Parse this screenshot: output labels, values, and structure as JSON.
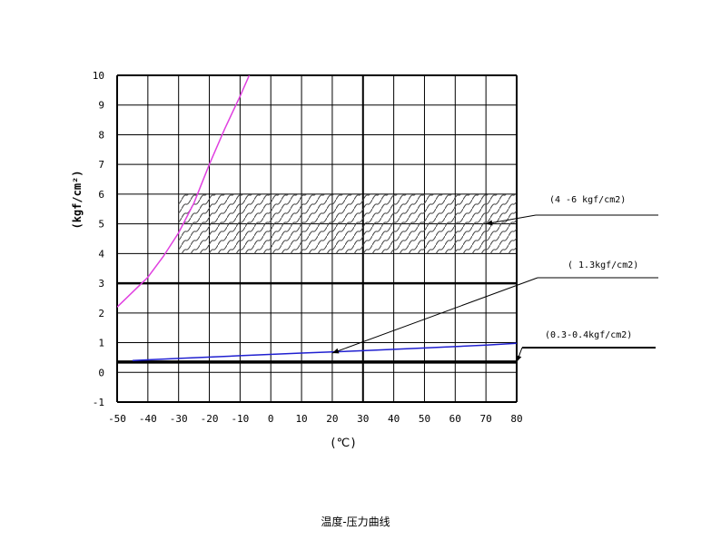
{
  "caption": "温度-压力曲线",
  "chart_data": {
    "type": "line",
    "xlabel": "(℃)",
    "ylabel": "(kgf/cm²)",
    "xlim": [
      -50,
      80
    ],
    "ylim": [
      -1,
      10
    ],
    "x_ticks": [
      "-50",
      "-40",
      "-30",
      "-20",
      "-10",
      "0",
      "10",
      "20",
      "30",
      "40",
      "50",
      "60",
      "70",
      "80"
    ],
    "y_ticks": [
      "-1",
      "0",
      "1",
      "2",
      "3",
      "4",
      "5",
      "6",
      "7",
      "8",
      "9",
      "10"
    ],
    "grid": true,
    "series": [
      {
        "color": "#e040e0",
        "x": [
          -50,
          -45,
          -40,
          -35,
          -30,
          -25,
          -20,
          -15,
          -10,
          -7
        ],
        "y": [
          2.2,
          2.7,
          3.2,
          3.9,
          4.7,
          5.7,
          7.0,
          8.2,
          9.3,
          10.0
        ]
      },
      {
        "color": "#2020d0",
        "x": [
          -45,
          -30,
          -10,
          10,
          30,
          50,
          70,
          80
        ],
        "y": [
          0.4,
          0.47,
          0.56,
          0.65,
          0.73,
          0.82,
          0.92,
          0.98
        ]
      }
    ],
    "reference_lines": [
      {
        "y": 3,
        "label": ""
      },
      {
        "y": 0.35,
        "label": ""
      }
    ],
    "shaded_band": {
      "x": [
        -30,
        80
      ],
      "y": [
        4,
        6
      ]
    },
    "annotations": [
      {
        "text": "(4 -6 kgf/cm2)",
        "target": [
          70,
          5
        ]
      },
      {
        "text": "( 1.3kgf/cm2)",
        "target": [
          20,
          0.65
        ]
      },
      {
        "text": "(0.3-0.4kgf/cm2)",
        "target": [
          80,
          0.35
        ]
      }
    ]
  }
}
